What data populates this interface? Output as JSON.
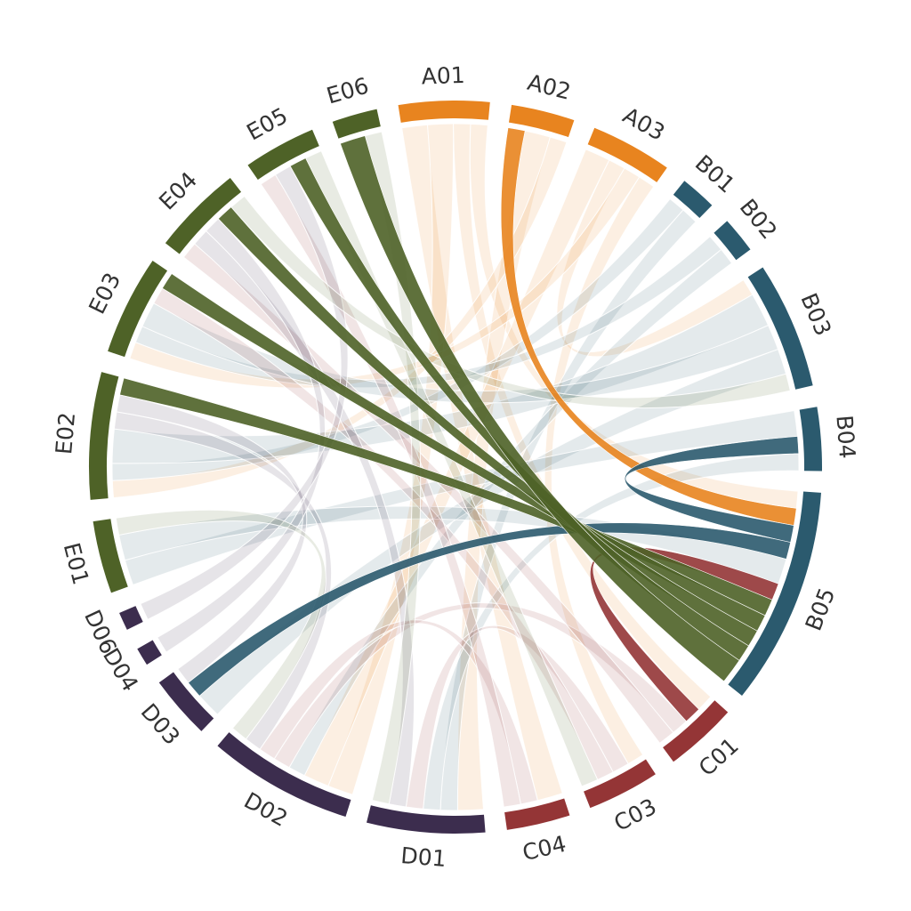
{
  "chart_data": {
    "type": "chord",
    "title": "",
    "group_colors": {
      "A": "#E8841F",
      "B": "#2B5A6E",
      "C": "#943536",
      "D": "#3C2D4E",
      "E": "#4E6227"
    },
    "segments": [
      {
        "id": "A01",
        "label": "A01",
        "group": "A"
      },
      {
        "id": "A02",
        "label": "A02",
        "group": "A"
      },
      {
        "id": "A03",
        "label": "A03",
        "group": "A"
      },
      {
        "id": "B01",
        "label": "B01",
        "group": "B"
      },
      {
        "id": "B02",
        "label": "B02",
        "group": "B"
      },
      {
        "id": "B03",
        "label": "B03",
        "group": "B"
      },
      {
        "id": "B04",
        "label": "B04",
        "group": "B"
      },
      {
        "id": "B05",
        "label": "B05",
        "group": "B"
      },
      {
        "id": "C01",
        "label": "C01",
        "group": "C"
      },
      {
        "id": "C03",
        "label": "C03",
        "group": "C"
      },
      {
        "id": "C04",
        "label": "C04",
        "group": "C"
      },
      {
        "id": "D01",
        "label": "D01",
        "group": "D"
      },
      {
        "id": "D02",
        "label": "D02",
        "group": "D"
      },
      {
        "id": "D03",
        "label": "D03",
        "group": "D"
      },
      {
        "id": "D04",
        "label": "D04",
        "group": "D"
      },
      {
        "id": "D06",
        "label": "D06",
        "group": "D"
      },
      {
        "id": "E01",
        "label": "E01",
        "group": "E"
      },
      {
        "id": "E02",
        "label": "E02",
        "group": "E"
      },
      {
        "id": "E03",
        "label": "E03",
        "group": "E"
      },
      {
        "id": "E04",
        "label": "E04",
        "group": "E"
      },
      {
        "id": "E05",
        "label": "E05",
        "group": "E"
      },
      {
        "id": "E06",
        "label": "E06",
        "group": "E"
      }
    ],
    "links": [
      {
        "source": "A01",
        "target": "C04",
        "value": 3
      },
      {
        "source": "A01",
        "target": "D02",
        "value": 3
      },
      {
        "source": "A01",
        "target": "C01",
        "value": 2
      },
      {
        "source": "A01",
        "target": "B05",
        "value": 2
      },
      {
        "source": "A02",
        "target": "B05",
        "value": 2,
        "highlight": true
      },
      {
        "source": "A02",
        "target": "D01",
        "value": 3
      },
      {
        "source": "A02",
        "target": "E02",
        "value": 2
      },
      {
        "source": "A03",
        "target": "D02",
        "value": 3
      },
      {
        "source": "A03",
        "target": "B03",
        "value": 2
      },
      {
        "source": "A03",
        "target": "E03",
        "value": 2
      },
      {
        "source": "A03",
        "target": "C03",
        "value": 2
      },
      {
        "source": "B01",
        "target": "E02",
        "value": 2
      },
      {
        "source": "B01",
        "target": "D01",
        "value": 2
      },
      {
        "source": "B02",
        "target": "E03",
        "value": 2
      },
      {
        "source": "B02",
        "target": "D02",
        "value": 2
      },
      {
        "source": "B03",
        "target": "E02",
        "value": 4
      },
      {
        "source": "B03",
        "target": "E03",
        "value": 3
      },
      {
        "source": "B03",
        "target": "D03",
        "value": 3
      },
      {
        "source": "B04",
        "target": "E01",
        "value": 3
      },
      {
        "source": "B04",
        "target": "B05",
        "value": 2,
        "highlight": true
      },
      {
        "source": "B04",
        "target": "D01",
        "value": 2
      },
      {
        "source": "B05",
        "target": "D03",
        "value": 2,
        "highlight": true
      },
      {
        "source": "B05",
        "target": "E01",
        "value": 3
      },
      {
        "source": "C01",
        "target": "B05",
        "value": 2,
        "highlight": true
      },
      {
        "source": "C01",
        "target": "D02",
        "value": 2
      },
      {
        "source": "C01",
        "target": "E04",
        "value": 2
      },
      {
        "source": "C03",
        "target": "D01",
        "value": 2
      },
      {
        "source": "C03",
        "target": "E03",
        "value": 2
      },
      {
        "source": "C04",
        "target": "D02",
        "value": 2
      },
      {
        "source": "C04",
        "target": "E05",
        "value": 2
      },
      {
        "source": "D01",
        "target": "E04",
        "value": 2
      },
      {
        "source": "D02",
        "target": "E02",
        "value": 2
      },
      {
        "source": "D03",
        "target": "E02",
        "value": 2
      },
      {
        "source": "D04",
        "target": "E04",
        "value": 2
      },
      {
        "source": "D06",
        "target": "E05",
        "value": 2
      },
      {
        "source": "E02",
        "target": "B05",
        "value": 2,
        "highlight": true
      },
      {
        "source": "E03",
        "target": "B05",
        "value": 2,
        "highlight": true
      },
      {
        "source": "E04",
        "target": "B05",
        "value": 2,
        "highlight": true
      },
      {
        "source": "E05",
        "target": "B05",
        "value": 2,
        "highlight": true
      },
      {
        "source": "E06",
        "target": "B05",
        "value": 3,
        "highlight": true
      },
      {
        "source": "E06",
        "target": "D01",
        "value": 2
      },
      {
        "source": "E01",
        "target": "D02",
        "value": 2
      },
      {
        "source": "E05",
        "target": "C03",
        "value": 2
      },
      {
        "source": "E04",
        "target": "B03",
        "value": 2
      }
    ]
  }
}
